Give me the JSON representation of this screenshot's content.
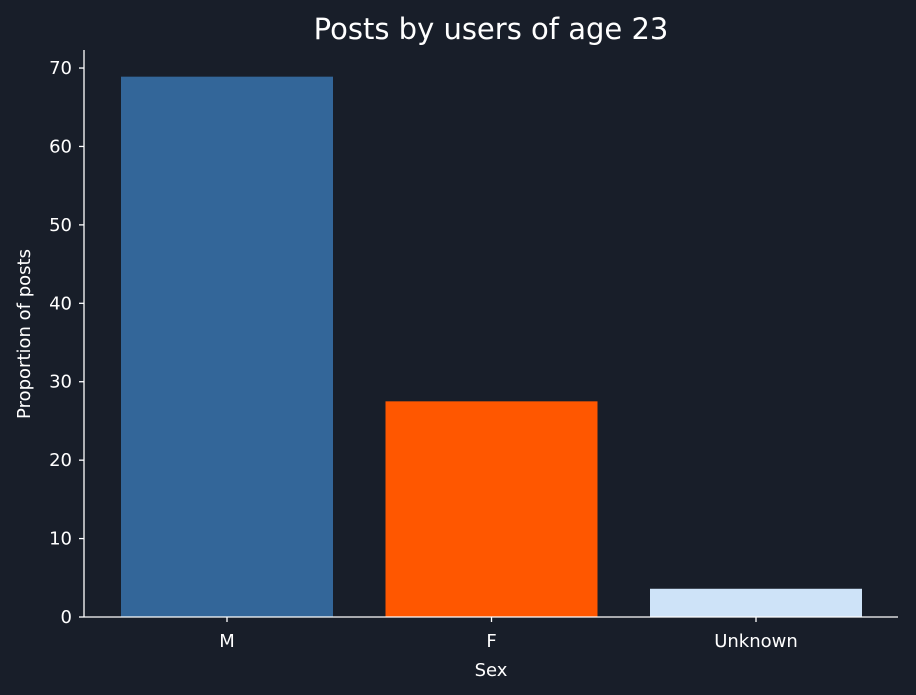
{
  "chart_data": {
    "type": "bar",
    "title": "Posts by users of age 23",
    "xlabel": "Sex",
    "ylabel": "Proportion of posts",
    "categories": [
      "M",
      "F",
      "Unknown"
    ],
    "values": [
      68.9,
      27.5,
      3.6
    ],
    "colors": [
      "#336699",
      "#ff5700",
      "#cee3f8"
    ],
    "ylim": [
      0,
      72.3
    ],
    "yticks": [
      0,
      10,
      20,
      30,
      40,
      50,
      60,
      70
    ],
    "grid": false,
    "legend": "none"
  },
  "colors": {
    "background": "#181e29",
    "text": "#ffffff"
  }
}
